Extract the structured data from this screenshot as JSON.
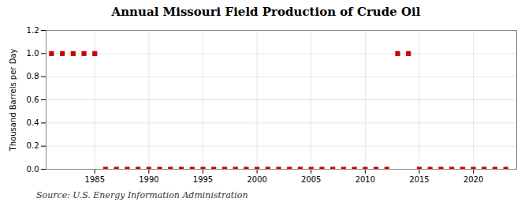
{
  "chart_data": {
    "type": "scatter",
    "title": "Annual Missouri Field Production of Crude Oil",
    "ylabel": "Thousand Barrels per Day",
    "source": "Source: U.S. Energy Information Administration",
    "color": "#cc0000",
    "marker": "square",
    "x": [
      1981,
      1982,
      1983,
      1984,
      1985,
      1986,
      1987,
      1988,
      1989,
      1990,
      1991,
      1992,
      1993,
      1994,
      1995,
      1996,
      1997,
      1998,
      1999,
      2000,
      2001,
      2002,
      2003,
      2004,
      2005,
      2006,
      2007,
      2008,
      2009,
      2010,
      2011,
      2012,
      2013,
      2014,
      2015,
      2016,
      2017,
      2018,
      2019,
      2020,
      2021,
      2022,
      2023
    ],
    "values": [
      1.0,
      1.0,
      1.0,
      1.0,
      1.0,
      0.0,
      0.0,
      0.0,
      0.0,
      0.0,
      0.0,
      0.0,
      0.0,
      0.0,
      0.0,
      0.0,
      0.0,
      0.0,
      0.0,
      0.0,
      0.0,
      0.0,
      0.0,
      0.0,
      0.0,
      0.0,
      0.0,
      0.0,
      0.0,
      0.0,
      0.0,
      0.0,
      1.0,
      1.0,
      0.0,
      0.0,
      0.0,
      0.0,
      0.0,
      0.0,
      0.0,
      0.0,
      0.0
    ],
    "xlim": [
      1980.5,
      2024
    ],
    "ylim": [
      0.0,
      1.2
    ],
    "xticks": [
      1985,
      1990,
      1995,
      2000,
      2005,
      2010,
      2015,
      2020
    ],
    "yticks": [
      {
        "value": 0.0,
        "label": "0.0"
      },
      0.2,
      0.4,
      0.6,
      0.8,
      {
        "value": 1.0,
        "label": "1.0"
      },
      1.2
    ],
    "grid": true
  }
}
